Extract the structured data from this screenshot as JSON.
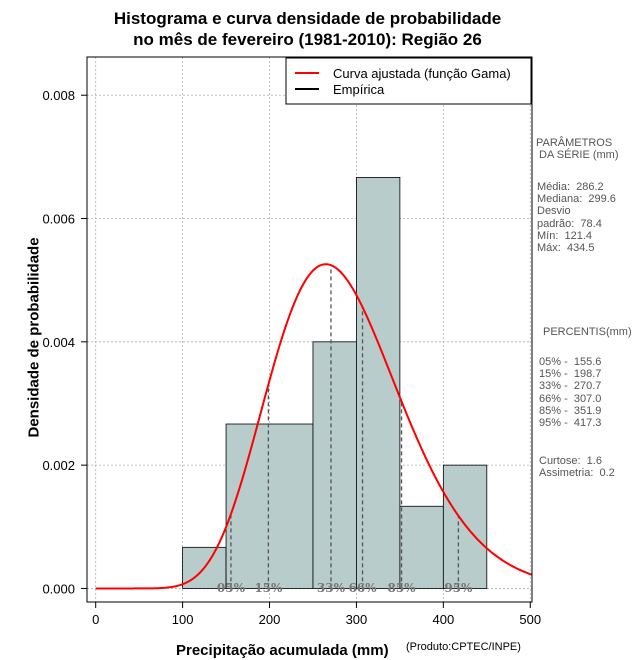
{
  "chart_data": {
    "type": "bar",
    "title_line1": "Histograma e curva densidade de probabilidade",
    "title_line2": "no mês de fevereiro (1981-2010): Região 26",
    "xlabel": "Precipitação acumulada (mm)",
    "ylabel": "Densidade de probabilidade",
    "credit": "(Produto:CPTEC/INPE)",
    "xlim": [
      -10,
      502
    ],
    "ylim": [
      -0.00022,
      0.00862
    ],
    "x_ticks": [
      0,
      100,
      200,
      300,
      400,
      500
    ],
    "y_ticks": [
      0.0,
      0.002,
      0.004,
      0.006,
      0.008
    ],
    "y_tick_labels": [
      "0.000",
      "0.002",
      "0.004",
      "0.006",
      "0.008"
    ],
    "grid": true,
    "bins": [
      {
        "x0": 100,
        "x1": 150,
        "density": 0.000667
      },
      {
        "x0": 150,
        "x1": 250,
        "density": 0.002667
      },
      {
        "x0": 250,
        "x1": 300,
        "density": 0.004
      },
      {
        "x0": 300,
        "x1": 350,
        "density": 0.006667
      },
      {
        "x0": 350,
        "x1": 400,
        "density": 0.001333
      },
      {
        "x0": 400,
        "x1": 450,
        "density": 0.002
      }
    ],
    "bar_color": "#b7cccb",
    "curve": {
      "name": "Curva ajustada (função Gama)",
      "color": "#ff0000",
      "shape": 13.35,
      "scale": 21.44
    },
    "legend": [
      {
        "label": "Curva ajustada (função Gama)",
        "color": "#ff0000"
      },
      {
        "label": "Empírica",
        "color": "#000000"
      }
    ],
    "percentile_lines": [
      {
        "label": "05%",
        "x": 155.6
      },
      {
        "label": "15%",
        "x": 198.7
      },
      {
        "label": "33%",
        "x": 270.7
      },
      {
        "label": "66%",
        "x": 307.0
      },
      {
        "label": "85%",
        "x": 351.9
      },
      {
        "label": "95%",
        "x": 417.3
      }
    ]
  },
  "side_panel": {
    "params_title": "PARÂMETROS\n DA SÉRIE (mm)",
    "params_text": "Média:  286.2\nMediana:  299.6\nDesvio\npadrão:  78.4\nMín:  121.4\nMáx:  434.5",
    "percentis_title": "PERCENTIS(mm)",
    "percentis_text": "05% -  155.6\n15% -  198.7\n33% -  270.7\n66% -  307.0\n85% -  351.9\n95% -  417.3",
    "stats_text": "Curtose:  1.6\nAssimetria:  0.2"
  }
}
